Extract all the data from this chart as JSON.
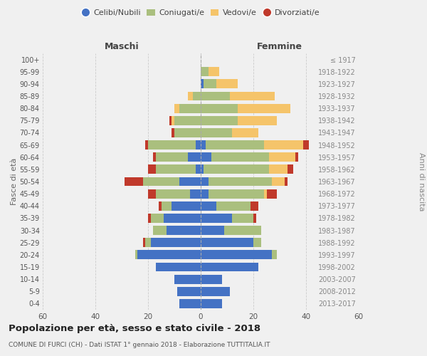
{
  "age_groups": [
    "0-4",
    "5-9",
    "10-14",
    "15-19",
    "20-24",
    "25-29",
    "30-34",
    "35-39",
    "40-44",
    "45-49",
    "50-54",
    "55-59",
    "60-64",
    "65-69",
    "70-74",
    "75-79",
    "80-84",
    "85-89",
    "90-94",
    "95-99",
    "100+"
  ],
  "birth_years": [
    "2013-2017",
    "2008-2012",
    "2003-2007",
    "1998-2002",
    "1993-1997",
    "1988-1992",
    "1983-1987",
    "1978-1982",
    "1973-1977",
    "1968-1972",
    "1963-1967",
    "1958-1962",
    "1953-1957",
    "1948-1952",
    "1943-1947",
    "1938-1942",
    "1933-1937",
    "1928-1932",
    "1923-1927",
    "1918-1922",
    "≤ 1917"
  ],
  "male": {
    "celibi": [
      8,
      9,
      10,
      17,
      24,
      19,
      13,
      14,
      11,
      4,
      8,
      2,
      5,
      2,
      0,
      0,
      0,
      0,
      0,
      0,
      0
    ],
    "coniugati": [
      0,
      0,
      0,
      0,
      1,
      2,
      5,
      5,
      4,
      13,
      14,
      15,
      12,
      18,
      10,
      10,
      8,
      3,
      0,
      0,
      0
    ],
    "vedovi": [
      0,
      0,
      0,
      0,
      0,
      0,
      0,
      0,
      0,
      0,
      0,
      0,
      0,
      0,
      0,
      1,
      2,
      2,
      0,
      0,
      0
    ],
    "divorziati": [
      0,
      0,
      0,
      0,
      0,
      1,
      0,
      1,
      1,
      3,
      7,
      3,
      1,
      1,
      1,
      1,
      0,
      0,
      0,
      0,
      0
    ]
  },
  "female": {
    "nubili": [
      8,
      11,
      8,
      22,
      27,
      20,
      9,
      12,
      6,
      3,
      3,
      1,
      4,
      2,
      0,
      0,
      0,
      0,
      1,
      0,
      0
    ],
    "coniugate": [
      0,
      0,
      0,
      0,
      2,
      3,
      14,
      8,
      13,
      21,
      24,
      25,
      22,
      22,
      12,
      14,
      14,
      11,
      5,
      3,
      0
    ],
    "vedove": [
      0,
      0,
      0,
      0,
      0,
      0,
      0,
      0,
      0,
      1,
      5,
      7,
      10,
      15,
      10,
      15,
      20,
      17,
      8,
      4,
      0
    ],
    "divorziate": [
      0,
      0,
      0,
      0,
      0,
      0,
      0,
      1,
      3,
      4,
      1,
      2,
      1,
      2,
      0,
      0,
      0,
      0,
      0,
      0,
      0
    ]
  },
  "colors": {
    "celibi_nubili": "#4472C4",
    "coniugati": "#AABF7E",
    "vedovi": "#F5C46A",
    "divorziati": "#C0392B"
  },
  "xlim": 60,
  "title": "Popolazione per età, sesso e stato civile - 2018",
  "subtitle": "COMUNE DI FURCI (CH) - Dati ISTAT 1° gennaio 2018 - Elaborazione TUTTITALIA.IT",
  "ylabel_left": "Fasce di età",
  "ylabel_right": "Anni di nascita",
  "xlabel_left": "Maschi",
  "xlabel_right": "Femmine",
  "background_color": "#f0f0f0",
  "grid_color": "#cccccc"
}
